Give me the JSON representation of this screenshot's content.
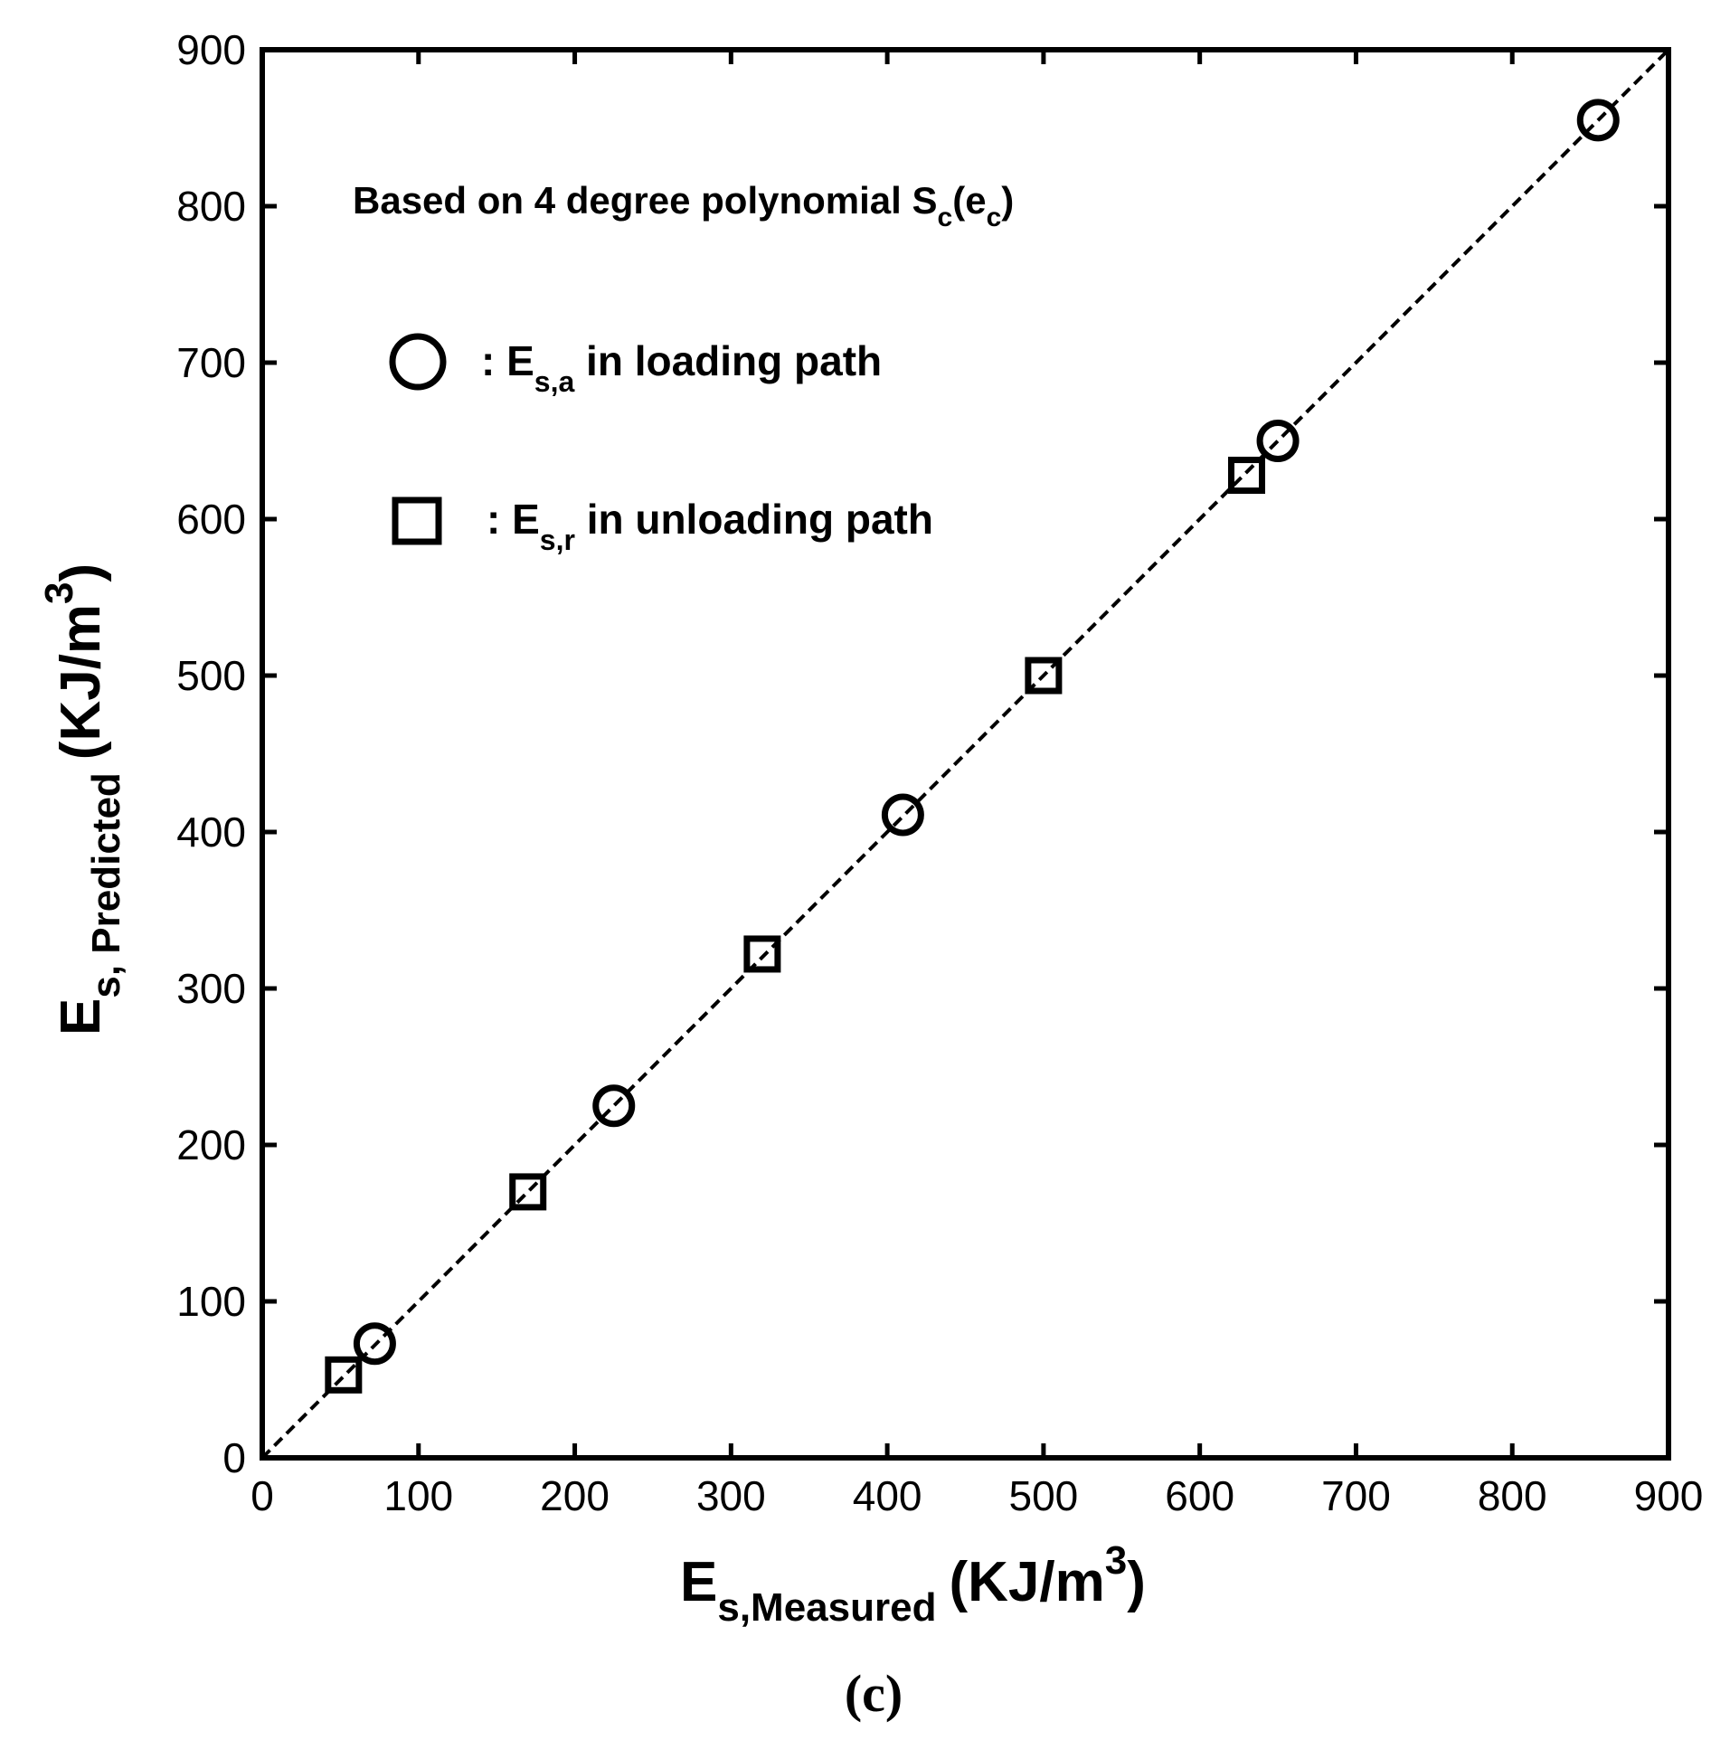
{
  "chart_data": {
    "type": "scatter",
    "annotation": {
      "main": "Based on 4 degree polynomial S",
      "sub1": "c",
      "mid": "(e",
      "sub2": "c",
      "end": ")"
    },
    "xlabel": {
      "main": "E",
      "sub": "s,Measured",
      "unit": "(KJ/m",
      "sup": "3",
      "close": ")"
    },
    "ylabel": {
      "main": "E",
      "sub": "s, Predicted",
      "unit": "(KJ/m",
      "sup": "3",
      "close": ")"
    },
    "panel_label": "(c)",
    "xlim": [
      0,
      900
    ],
    "ylim": [
      0,
      900
    ],
    "xticks": [
      "0",
      "100",
      "200",
      "300",
      "400",
      "500",
      "600",
      "700",
      "800",
      "900"
    ],
    "yticks": [
      "0",
      "100",
      "200",
      "300",
      "400",
      "500",
      "600",
      "700",
      "800",
      "900"
    ],
    "grid": false,
    "reference_line": {
      "style": "dashed",
      "from": [
        0,
        0
      ],
      "to": [
        900,
        900
      ]
    },
    "legend": {
      "placement": "top-left",
      "entries": [
        {
          "marker": "circle",
          "prefix": ": E",
          "sub": "s,a",
          "text": " in loading path"
        },
        {
          "marker": "square",
          "prefix": ": E",
          "sub": "s,r",
          "text": " in unloading path"
        }
      ]
    },
    "series": [
      {
        "marker": "circle",
        "x": [
          72,
          225,
          410,
          650,
          855
        ],
        "y": [
          73,
          225,
          411,
          650,
          855
        ]
      },
      {
        "marker": "square",
        "x": [
          52,
          170,
          320,
          500,
          630
        ],
        "y": [
          53,
          170,
          322,
          500,
          628
        ]
      }
    ],
    "colors": {
      "axis": "#000000",
      "marker": "#000000",
      "background": "#ffffff"
    }
  }
}
